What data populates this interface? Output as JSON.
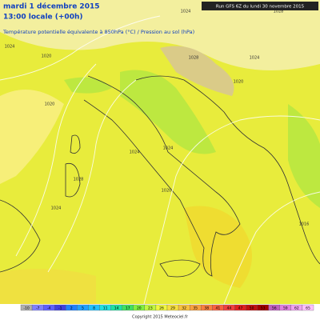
{
  "header": {
    "date": "mardi 1 décembre 2015",
    "time": "13:00 locale (+00h)",
    "parameter": "Température potentielle équivalente à 850hPa (°C) / Pression au sol (hPa)",
    "run": "Run GFS 6Z du lundi 30 novembre 2015"
  },
  "isobar_labels": [
    "1024",
    "1028",
    "1024",
    "1020",
    "1028",
    "1024",
    "1020",
    "1024",
    "1024",
    "1020",
    "1024",
    "1028",
    "1020",
    "1016"
  ],
  "legend": {
    "labels": [
      "-10",
      "-7",
      "-4",
      "-1",
      "2",
      "5",
      "8",
      "11",
      "14",
      "17",
      "20",
      "23",
      "26",
      "29",
      "32",
      "35",
      "38",
      "41",
      "44",
      "47",
      "50",
      "53",
      "56",
      "59",
      "62",
      "65"
    ],
    "colors": [
      "#b0b0b0",
      "#8080ff",
      "#6060ff",
      "#4040e0",
      "#2080ff",
      "#20a0ff",
      "#20c0ff",
      "#20e0e0",
      "#20e0a0",
      "#40e060",
      "#80f040",
      "#c0f840",
      "#f0f840",
      "#f8e040",
      "#f8c040",
      "#f8a040",
      "#f88040",
      "#f86040",
      "#f04040",
      "#e02020",
      "#c01010",
      "#a00000",
      "#c060c0",
      "#e080e0",
      "#f0a0f0",
      "#ffc0ff"
    ]
  },
  "footer": {
    "copyright": "Copyright 2015 Meteociel.fr"
  }
}
